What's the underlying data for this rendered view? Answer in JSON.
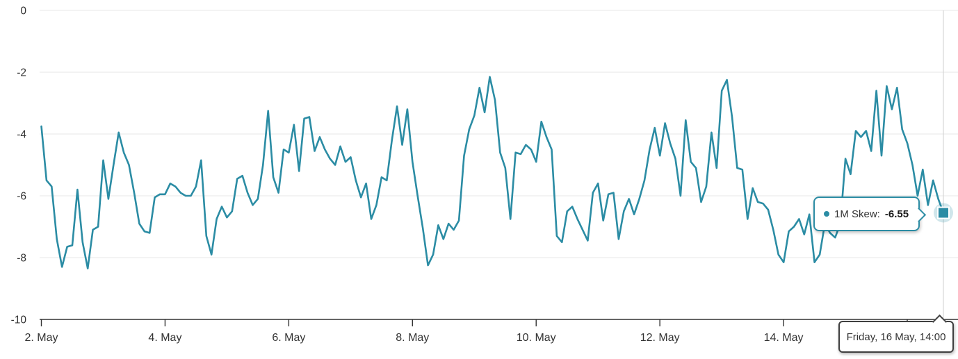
{
  "chart": {
    "y_axis": {
      "tick_labels": [
        "0",
        "-2",
        "-4",
        "-6",
        "-8",
        "-10"
      ]
    },
    "x_axis": {
      "tick_labels": [
        "2. May",
        "4. May",
        "6. May",
        "8. May",
        "10. May",
        "12. May",
        "14. May",
        "16. May"
      ]
    },
    "tooltip": {
      "series_label": "1M Skew:",
      "value": "-6.55"
    },
    "date_label": "Friday, 16 May, 14:00",
    "colors": {
      "line": "#2b8ca4",
      "halo": "rgba(43,140,164,0.22)",
      "grid": "#e7e7e7",
      "axis": "#333333",
      "crosshair": "#cfcfcf",
      "label": "#333333"
    }
  },
  "chart_data": {
    "type": "line",
    "title": "",
    "xlabel": "",
    "ylabel": "",
    "ylim": [
      -10,
      0
    ],
    "grid": "horizontal",
    "legend": "none",
    "x_tick_labels": [
      "2. May",
      "4. May",
      "6. May",
      "8. May",
      "10. May",
      "12. May",
      "14. May",
      "16. May"
    ],
    "y_ticks": [
      0,
      -2,
      -4,
      -6,
      -8,
      -10
    ],
    "hover_point": {
      "time_label": "Friday, 16 May, 14:00",
      "series": "1M Skew",
      "value": -6.55
    },
    "series": [
      {
        "name": "1M Skew",
        "start": "2 May 00:00",
        "step_hours": 2,
        "values": [
          -3.75,
          -5.5,
          -5.7,
          -7.4,
          -8.3,
          -7.65,
          -7.6,
          -5.8,
          -7.5,
          -8.35,
          -7.1,
          -7.0,
          -4.85,
          -6.1,
          -5.0,
          -3.95,
          -4.6,
          -5.0,
          -5.9,
          -6.9,
          -7.15,
          -7.2,
          -6.05,
          -5.95,
          -5.95,
          -5.6,
          -5.7,
          -5.9,
          -6.0,
          -6.0,
          -5.7,
          -4.85,
          -7.3,
          -7.9,
          -6.75,
          -6.35,
          -6.7,
          -6.5,
          -5.45,
          -5.35,
          -5.9,
          -6.3,
          -6.1,
          -5.0,
          -3.25,
          -5.4,
          -5.9,
          -4.5,
          -4.6,
          -3.7,
          -5.2,
          -3.5,
          -3.45,
          -4.55,
          -4.1,
          -4.5,
          -4.8,
          -5.0,
          -4.4,
          -4.9,
          -4.75,
          -5.5,
          -6.05,
          -5.6,
          -6.75,
          -6.3,
          -5.4,
          -5.5,
          -4.2,
          -3.1,
          -4.35,
          -3.2,
          -4.9,
          -6.0,
          -7.05,
          -8.25,
          -7.9,
          -6.95,
          -7.4,
          -6.9,
          -7.1,
          -6.8,
          -4.7,
          -3.85,
          -3.4,
          -2.5,
          -3.3,
          -2.15,
          -2.9,
          -4.6,
          -5.1,
          -6.75,
          -4.6,
          -4.65,
          -4.35,
          -4.5,
          -4.9,
          -3.6,
          -4.1,
          -4.5,
          -7.3,
          -7.5,
          -6.5,
          -6.35,
          -6.75,
          -7.1,
          -7.45,
          -5.9,
          -5.6,
          -6.8,
          -5.95,
          -5.9,
          -7.4,
          -6.5,
          -6.1,
          -6.6,
          -6.1,
          -5.5,
          -4.5,
          -3.8,
          -4.7,
          -3.65,
          -4.3,
          -4.8,
          -6.0,
          -3.55,
          -4.9,
          -5.1,
          -6.2,
          -5.7,
          -3.95,
          -5.1,
          -2.6,
          -2.25,
          -3.45,
          -5.1,
          -5.15,
          -6.75,
          -5.75,
          -6.2,
          -6.25,
          -6.45,
          -7.1,
          -7.9,
          -8.15,
          -7.15,
          -7.0,
          -6.75,
          -7.25,
          -6.6,
          -8.15,
          -7.9,
          -6.9,
          -7.2,
          -7.35,
          -6.9,
          -4.8,
          -5.3,
          -3.9,
          -4.1,
          -3.9,
          -4.55,
          -2.6,
          -4.7,
          -2.45,
          -3.2,
          -2.5,
          -3.85,
          -4.3,
          -5.0,
          -6.0,
          -5.15,
          -6.3,
          -5.5,
          -6.1,
          -6.55
        ]
      }
    ]
  }
}
